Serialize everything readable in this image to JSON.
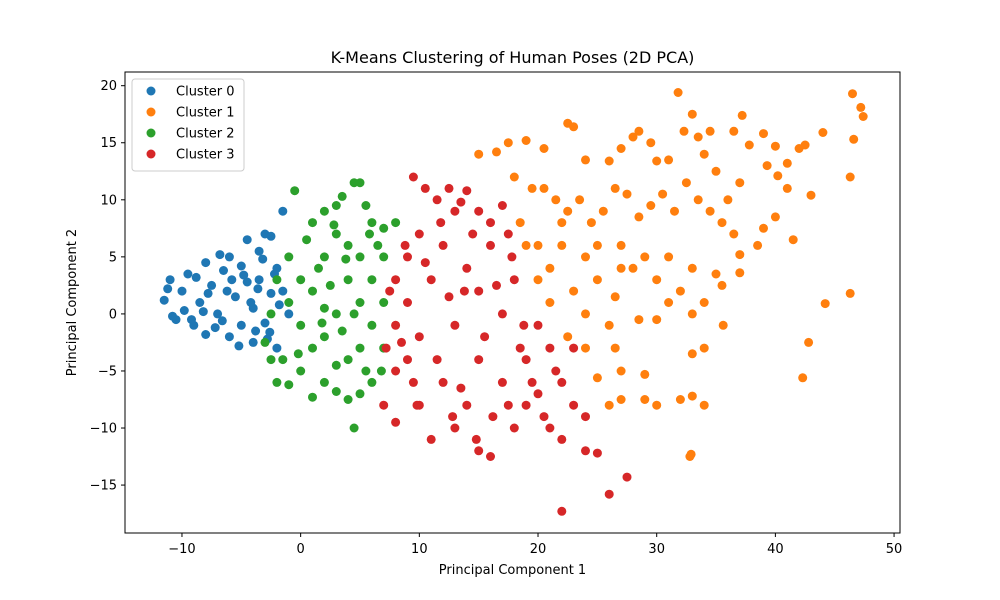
{
  "chart_data": {
    "type": "scatter",
    "title": "K-Means Clustering of Human Poses (2D PCA)",
    "xlabel": "Principal Component 1",
    "ylabel": "Principal Component 2",
    "xlim": [
      -14.8,
      50.5
    ],
    "ylim": [
      -19.2,
      21.2
    ],
    "x_ticks": [
      -10,
      0,
      10,
      20,
      30,
      40,
      50
    ],
    "y_ticks": [
      -15,
      -10,
      -5,
      0,
      5,
      10,
      15,
      20
    ],
    "x_tick_labels": [
      "−10",
      "0",
      "10",
      "20",
      "30",
      "40",
      "50"
    ],
    "y_tick_labels": [
      "−15",
      "−10",
      "−5",
      "0",
      "5",
      "10",
      "15",
      "20"
    ],
    "legend_position": "top-left",
    "grid": false,
    "series": [
      {
        "name": "Cluster 0",
        "color": "#1f77b4",
        "points": [
          [
            -11.5,
            1.2
          ],
          [
            -11,
            3
          ],
          [
            -10.5,
            -0.5
          ],
          [
            -10,
            2
          ],
          [
            -9.5,
            3.5
          ],
          [
            -9,
            -1
          ],
          [
            -8.5,
            1
          ],
          [
            -8,
            4.5
          ],
          [
            -8,
            -1.8
          ],
          [
            -7.5,
            2.5
          ],
          [
            -7,
            0
          ],
          [
            -6.5,
            3.8
          ],
          [
            -6,
            -2
          ],
          [
            -6,
            5
          ],
          [
            -5.5,
            1.5
          ],
          [
            -5,
            -1
          ],
          [
            -5,
            4.2
          ],
          [
            -4.5,
            6.5
          ],
          [
            -4.5,
            2.8
          ],
          [
            -4,
            -2.5
          ],
          [
            -4,
            0.5
          ],
          [
            -3.5,
            5.5
          ],
          [
            -3.5,
            3
          ],
          [
            -3,
            7
          ],
          [
            -3,
            -0.8
          ],
          [
            -2.5,
            6.8
          ],
          [
            -2.5,
            1.8
          ],
          [
            -2,
            4
          ],
          [
            -2,
            -3
          ],
          [
            -1.5,
            9
          ],
          [
            -1.5,
            2
          ],
          [
            -1,
            0
          ],
          [
            -9.8,
            0.3
          ],
          [
            -7.2,
            -1.2
          ],
          [
            -5.8,
            3
          ],
          [
            -3.8,
            -1.5
          ],
          [
            -2.8,
            -2.2
          ],
          [
            -6.8,
            5.2
          ],
          [
            -8.8,
            3.2
          ],
          [
            -4.2,
            1
          ],
          [
            -10.8,
            -0.2
          ],
          [
            -9.2,
            -0.5
          ],
          [
            -7.8,
            1.8
          ],
          [
            -6.2,
            2
          ],
          [
            -5.2,
            -2.8
          ],
          [
            -3.2,
            4.8
          ],
          [
            -2.2,
            3.5
          ],
          [
            -1.8,
            0.8
          ],
          [
            -11.2,
            2.2
          ],
          [
            -8.2,
            0.2
          ],
          [
            -6.6,
            -0.6
          ],
          [
            -4.8,
            3.4
          ],
          [
            -3.6,
            2.2
          ],
          [
            -2.6,
            -1.6
          ]
        ]
      },
      {
        "name": "Cluster 2",
        "color": "#2ca02c",
        "points": [
          [
            -0.5,
            10.8
          ],
          [
            1,
            8
          ],
          [
            2,
            9
          ],
          [
            3,
            9.5
          ],
          [
            3.5,
            10.3
          ],
          [
            4.5,
            11.5
          ],
          [
            5.5,
            9.5
          ],
          [
            6,
            8
          ],
          [
            7,
            7.5
          ],
          [
            8,
            8
          ],
          [
            5,
            11.5
          ],
          [
            -3,
            -2.5
          ],
          [
            -2.5,
            -4
          ],
          [
            -1.5,
            -4
          ],
          [
            -2,
            -6
          ],
          [
            -1,
            -6.2
          ],
          [
            0,
            -5
          ],
          [
            1,
            -7.3
          ],
          [
            2,
            -6
          ],
          [
            3,
            -6.8
          ],
          [
            4,
            -7.5
          ],
          [
            4.5,
            -10
          ],
          [
            5,
            -7
          ],
          [
            6,
            -6
          ],
          [
            0,
            3
          ],
          [
            0,
            -1
          ],
          [
            1,
            2
          ],
          [
            2,
            5
          ],
          [
            2,
            -2
          ],
          [
            3,
            0
          ],
          [
            3,
            7
          ],
          [
            4,
            3
          ],
          [
            4,
            -4
          ],
          [
            5,
            1
          ],
          [
            5,
            5
          ],
          [
            5,
            -3
          ],
          [
            6,
            3
          ],
          [
            6,
            -1
          ],
          [
            7,
            5
          ],
          [
            7,
            1
          ],
          [
            7,
            -3
          ],
          [
            -1,
            1
          ],
          [
            -2,
            3
          ],
          [
            -2.5,
            0
          ],
          [
            1,
            -3
          ],
          [
            2,
            0.5
          ],
          [
            3,
            -4.5
          ],
          [
            4,
            6
          ],
          [
            5.5,
            -5
          ],
          [
            6.5,
            6
          ],
          [
            -1,
            5
          ],
          [
            0.5,
            6.5
          ],
          [
            1.5,
            4
          ],
          [
            2.5,
            2.5
          ],
          [
            3.5,
            -1.5
          ],
          [
            4.5,
            0
          ],
          [
            5.8,
            7
          ],
          [
            6.8,
            -5
          ],
          [
            -0.2,
            -3.5
          ],
          [
            1.8,
            -0.8
          ],
          [
            2.8,
            7.8
          ],
          [
            3.8,
            4.8
          ]
        ]
      },
      {
        "name": "Cluster 3",
        "color": "#d62728",
        "points": [
          [
            9.5,
            12
          ],
          [
            10.5,
            11
          ],
          [
            11.5,
            10
          ],
          [
            12.5,
            11
          ],
          [
            13.5,
            9.8
          ],
          [
            14,
            10.8
          ],
          [
            15,
            9
          ],
          [
            16,
            8
          ],
          [
            17,
            9.5
          ],
          [
            17.5,
            7
          ],
          [
            8,
            3
          ],
          [
            8,
            -1
          ],
          [
            8,
            -5
          ],
          [
            7,
            -8
          ],
          [
            8,
            -9.5
          ],
          [
            9,
            -4
          ],
          [
            9,
            1
          ],
          [
            9,
            5
          ],
          [
            10,
            7
          ],
          [
            10,
            -2
          ],
          [
            10,
            -8
          ],
          [
            11,
            -11
          ],
          [
            11,
            3
          ],
          [
            12,
            -6
          ],
          [
            12,
            6
          ],
          [
            13,
            -10
          ],
          [
            13,
            -1
          ],
          [
            13,
            9
          ],
          [
            14,
            4
          ],
          [
            14,
            -8
          ],
          [
            15,
            -12
          ],
          [
            15,
            2
          ],
          [
            15,
            -4
          ],
          [
            16,
            -12.5
          ],
          [
            16,
            6
          ],
          [
            17,
            -6
          ],
          [
            17,
            0
          ],
          [
            18,
            -10
          ],
          [
            18,
            3
          ],
          [
            19,
            -4
          ],
          [
            19,
            -8
          ],
          [
            20,
            -1
          ],
          [
            20,
            -7
          ],
          [
            21,
            -10
          ],
          [
            21,
            -3
          ],
          [
            22,
            -17.3
          ],
          [
            22,
            -11
          ],
          [
            22,
            -6
          ],
          [
            23,
            -8
          ],
          [
            23,
            -3
          ],
          [
            24,
            -12
          ],
          [
            24,
            -9
          ],
          [
            25,
            -12.2
          ],
          [
            26,
            -15.8
          ],
          [
            27.5,
            -14.3
          ],
          [
            7.5,
            2
          ],
          [
            8.5,
            -2.5
          ],
          [
            9.5,
            -6
          ],
          [
            10.5,
            4.5
          ],
          [
            11.5,
            -4
          ],
          [
            12.5,
            1.5
          ],
          [
            13.5,
            -6.5
          ],
          [
            14.5,
            7
          ],
          [
            15.5,
            -2
          ],
          [
            16.5,
            2.5
          ],
          [
            17.5,
            -8
          ],
          [
            18.5,
            -3
          ],
          [
            19.5,
            -6
          ],
          [
            20.5,
            -9
          ],
          [
            21.5,
            -5
          ],
          [
            7.2,
            -3
          ],
          [
            8.8,
            6
          ],
          [
            9.8,
            -8
          ],
          [
            11.8,
            8
          ],
          [
            12.8,
            -9
          ],
          [
            13.8,
            2
          ],
          [
            14.8,
            -11
          ],
          [
            16.2,
            -9
          ],
          [
            17.8,
            5
          ],
          [
            18.8,
            -1
          ]
        ]
      },
      {
        "name": "Cluster 1",
        "color": "#ff7f0e",
        "points": [
          [
            15,
            14
          ],
          [
            16.5,
            14.2
          ],
          [
            17.5,
            15
          ],
          [
            19,
            15.2
          ],
          [
            20.5,
            14.5
          ],
          [
            22.5,
            16.7
          ],
          [
            23,
            16.4
          ],
          [
            24,
            13.5
          ],
          [
            26,
            13.4
          ],
          [
            27,
            14.5
          ],
          [
            28,
            15.5
          ],
          [
            28.5,
            16
          ],
          [
            29.5,
            15
          ],
          [
            30,
            13.4
          ],
          [
            31,
            13.5
          ],
          [
            31.8,
            19.4
          ],
          [
            32.3,
            16
          ],
          [
            33,
            17.5
          ],
          [
            33.5,
            15.5
          ],
          [
            34,
            14
          ],
          [
            34.5,
            16
          ],
          [
            36.5,
            16
          ],
          [
            37.2,
            17.4
          ],
          [
            37.8,
            14.8
          ],
          [
            39,
            15.8
          ],
          [
            40,
            14.7
          ],
          [
            41,
            13.2
          ],
          [
            42,
            14.5
          ],
          [
            42.5,
            14.8
          ],
          [
            44,
            15.9
          ],
          [
            46.5,
            19.3
          ],
          [
            47.2,
            18.1
          ],
          [
            47.4,
            17.3
          ],
          [
            46.6,
            15.3
          ],
          [
            46.3,
            12
          ],
          [
            43,
            10.4
          ],
          [
            41,
            11
          ],
          [
            40.2,
            12.1
          ],
          [
            39.3,
            13
          ],
          [
            40,
            8.5
          ],
          [
            41.5,
            6.5
          ],
          [
            39,
            7.5
          ],
          [
            38.5,
            6
          ],
          [
            37,
            5.2
          ],
          [
            37,
            3.6
          ],
          [
            35,
            3.5
          ],
          [
            35.5,
            2.5
          ],
          [
            34,
            1
          ],
          [
            33,
            0
          ],
          [
            33,
            -3.5
          ],
          [
            34,
            -3
          ],
          [
            32,
            -7.5
          ],
          [
            33,
            -7.2
          ],
          [
            34,
            -8
          ],
          [
            32.8,
            -12.5
          ],
          [
            32.9,
            -12.3
          ],
          [
            30,
            -8
          ],
          [
            29,
            -7.5
          ],
          [
            27,
            -7.5
          ],
          [
            27,
            -5
          ],
          [
            26,
            -8
          ],
          [
            25,
            -5.6
          ],
          [
            24,
            -3
          ],
          [
            22.5,
            -2
          ],
          [
            21,
            1
          ],
          [
            20,
            3
          ],
          [
            19,
            6
          ],
          [
            18,
            12
          ],
          [
            19.5,
            11
          ],
          [
            20.5,
            11
          ],
          [
            21.5,
            10
          ],
          [
            22.5,
            9
          ],
          [
            23.5,
            10
          ],
          [
            24.5,
            8
          ],
          [
            25.5,
            9
          ],
          [
            26.5,
            11
          ],
          [
            27.5,
            10.5
          ],
          [
            28.5,
            8.5
          ],
          [
            29.5,
            9.5
          ],
          [
            30.5,
            10.5
          ],
          [
            31.5,
            9
          ],
          [
            32.5,
            11.5
          ],
          [
            33.5,
            10
          ],
          [
            34.5,
            9
          ],
          [
            35.5,
            8
          ],
          [
            36.5,
            7
          ],
          [
            29,
            5
          ],
          [
            30,
            3
          ],
          [
            31,
            1
          ],
          [
            32,
            2
          ],
          [
            30,
            -0.5
          ],
          [
            28.5,
            -0.5
          ],
          [
            26.5,
            1.5
          ],
          [
            25,
            3
          ],
          [
            24,
            5
          ],
          [
            22,
            6
          ],
          [
            21,
            4
          ],
          [
            23,
            2
          ],
          [
            27,
            6
          ],
          [
            28,
            4
          ],
          [
            26,
            -1
          ],
          [
            29,
            -5.3
          ],
          [
            35.6,
            -1
          ],
          [
            42.3,
            -5.6
          ],
          [
            42.8,
            -2.5
          ],
          [
            44.2,
            0.9
          ],
          [
            46.3,
            1.8
          ],
          [
            37,
            11.5
          ],
          [
            35,
            12.5
          ],
          [
            36,
            10
          ],
          [
            18.5,
            8
          ],
          [
            20,
            6
          ],
          [
            22,
            8
          ],
          [
            25,
            6
          ],
          [
            27,
            4
          ],
          [
            31,
            5
          ],
          [
            33,
            4
          ],
          [
            24,
            0
          ],
          [
            26.5,
            -3
          ]
        ]
      }
    ]
  }
}
